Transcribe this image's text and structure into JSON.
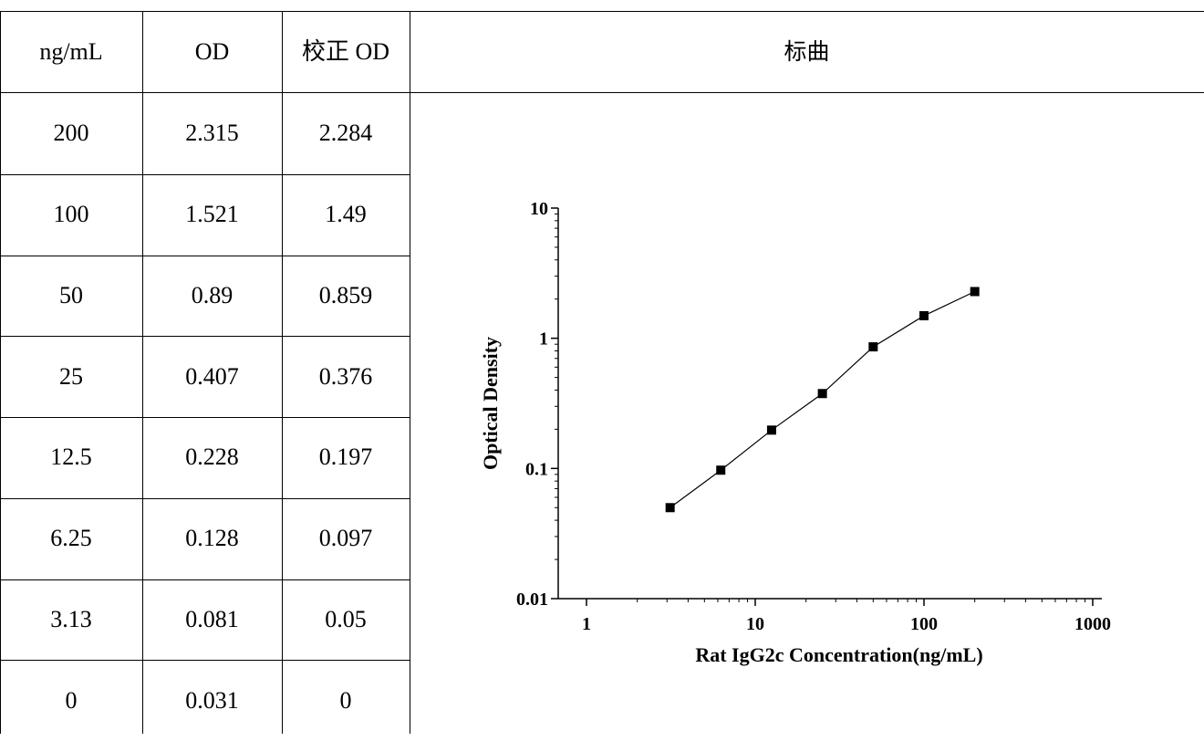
{
  "table": {
    "headers": [
      "ng/mL",
      "OD",
      "校正 OD"
    ],
    "rows": [
      [
        "200",
        "2.315",
        "2.284"
      ],
      [
        "100",
        "1.521",
        "1.49"
      ],
      [
        "50",
        "0.89",
        "0.859"
      ],
      [
        "25",
        "0.407",
        "0.376"
      ],
      [
        "12.5",
        "0.228",
        "0.197"
      ],
      [
        "6.25",
        "0.128",
        "0.097"
      ],
      [
        "3.13",
        "0.081",
        "0.05"
      ],
      [
        "0",
        "0.031",
        "0"
      ]
    ]
  },
  "panel": {
    "title": "标曲"
  },
  "chart_data": {
    "type": "line",
    "x_scale": "log",
    "y_scale": "log",
    "xlim": [
      1,
      1000
    ],
    "ylim": [
      0.01,
      10
    ],
    "xlabel": "Rat IgG2c Concentration(ng/mL)",
    "ylabel": "Optical Density",
    "x_ticks": [
      "1",
      "10",
      "100",
      "1000"
    ],
    "y_ticks": [
      "0.01",
      "0.1",
      "1",
      "10"
    ],
    "grid": false,
    "markers": "filled-square",
    "series": [
      {
        "x": [
          3.13,
          6.25,
          12.5,
          25,
          50,
          100,
          200
        ],
        "values": [
          0.05,
          0.097,
          0.197,
          0.376,
          0.859,
          1.49,
          2.284
        ]
      }
    ]
  }
}
